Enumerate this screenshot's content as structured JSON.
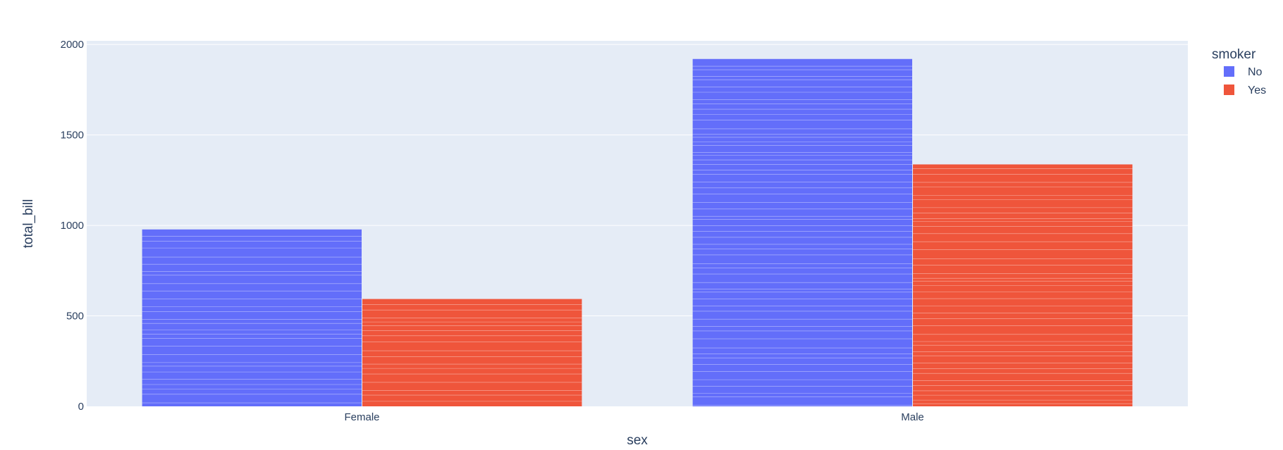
{
  "chart_data": {
    "type": "bar",
    "barmode": "group",
    "categories": [
      "Female",
      "Male"
    ],
    "series": [
      {
        "name": "No",
        "color": "#636efa",
        "values": [
          977.68,
          1919.75
        ]
      },
      {
        "name": "Yes",
        "color": "#ef553b",
        "values": [
          593.27,
          1337.07
        ]
      }
    ],
    "xlabel": "sex",
    "ylabel": "total_bill",
    "ylim": [
      0,
      2020
    ],
    "yticks": [
      0,
      500,
      1000,
      1500,
      2000
    ],
    "legend_title": "smoker",
    "legend_position": "top-right",
    "grid": true,
    "plot_background": "#e5ecf6",
    "bar_pattern": "stacked individual bill segments with thin white separators"
  }
}
